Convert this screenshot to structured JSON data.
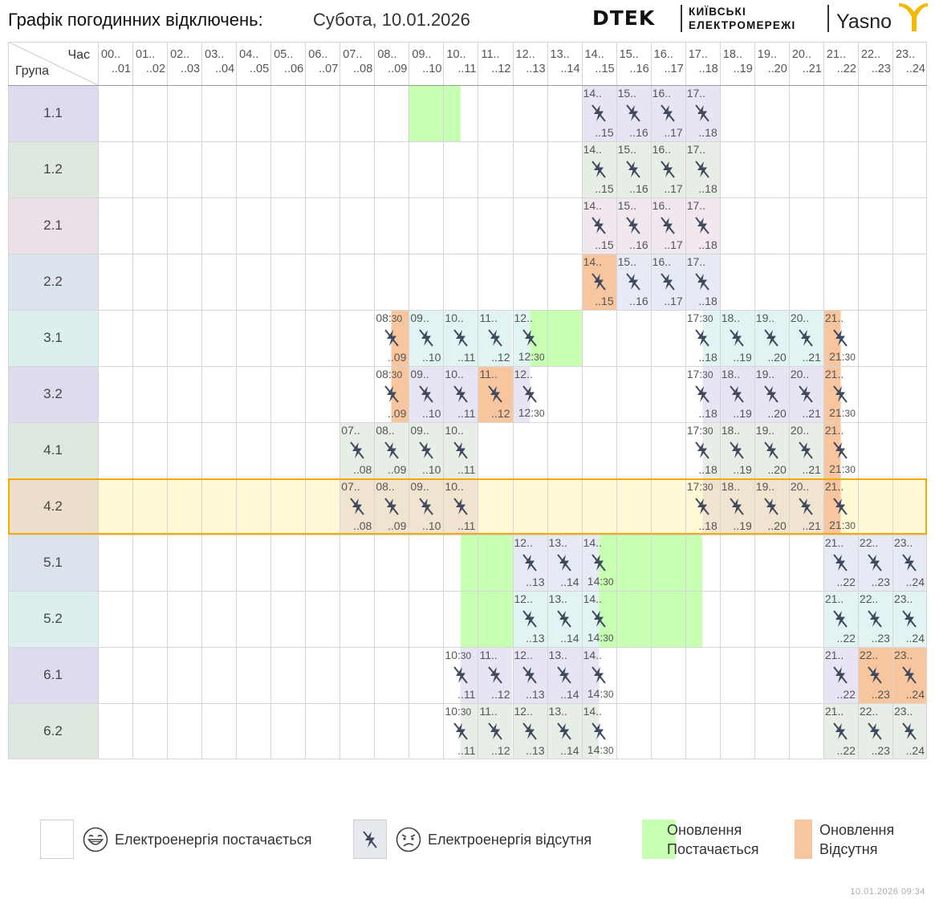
{
  "header": {
    "title": "Графік погодинних відключень:",
    "date": "Субота, 10.01.2026",
    "logo_dtek": "DTEK",
    "logo_kiev_line1": "КИЇВСЬКІ",
    "logo_kiev_line2": "ЕЛЕКТРОМЕРЕЖІ",
    "logo_yasno": "Yasno"
  },
  "grid": {
    "corner_hour": "Час",
    "corner_group": "Група",
    "hour_start_labels": [
      "00..",
      "01..",
      "02..",
      "03..",
      "04..",
      "05..",
      "06..",
      "07..",
      "08..",
      "09..",
      "10..",
      "11..",
      "12..",
      "13..",
      "14..",
      "15..",
      "16..",
      "17..",
      "18..",
      "19..",
      "20..",
      "21..",
      "22..",
      "23.."
    ],
    "hour_end_labels": [
      "..01",
      "..02",
      "..03",
      "..04",
      "..05",
      "..06",
      "..07",
      "..08",
      "..09",
      "..10",
      "..11",
      "..12",
      "..13",
      "..14",
      "..15",
      "..16",
      "..17",
      "..18",
      "..19",
      "..20",
      "..21",
      "..22",
      "..23",
      "..24"
    ],
    "selected_group": "4.2",
    "groups": [
      {
        "name": "1.1",
        "tint": "#dedbee",
        "cell_tint": "#e7e5f4",
        "outages": [
          {
            "h": 14
          },
          {
            "h": 15
          },
          {
            "h": 16
          },
          {
            "h": 17
          }
        ],
        "updates_on": [
          [
            9,
            10.5
          ]
        ],
        "updates_off": []
      },
      {
        "name": "1.2",
        "tint": "#dfe8df",
        "cell_tint": "#e6eee6",
        "outages": [
          {
            "h": 14
          },
          {
            "h": 15
          },
          {
            "h": 16
          },
          {
            "h": 17
          }
        ],
        "updates_on": [],
        "updates_off": []
      },
      {
        "name": "2.1",
        "tint": "#ebdfe8",
        "cell_tint": "#f1e7ee",
        "outages": [
          {
            "h": 14
          },
          {
            "h": 15
          },
          {
            "h": 16
          },
          {
            "h": 17
          }
        ],
        "updates_on": [],
        "updates_off": []
      },
      {
        "name": "2.2",
        "tint": "#dde3ed",
        "cell_tint": "#e5eaf4",
        "outages": [
          {
            "h": 14
          },
          {
            "h": 15
          },
          {
            "h": 16
          },
          {
            "h": 17
          }
        ],
        "updates_on": [],
        "updates_off": [
          [
            14,
            15
          ]
        ]
      },
      {
        "name": "3.1",
        "tint": "#daefee",
        "cell_tint": "#e1f4f3",
        "outages": [
          {
            "h": 8,
            "half": "second"
          },
          {
            "h": 9
          },
          {
            "h": 10
          },
          {
            "h": 11
          },
          {
            "h": 12,
            "half": "first"
          },
          {
            "h": 17,
            "half": "second"
          },
          {
            "h": 18
          },
          {
            "h": 19
          },
          {
            "h": 20
          },
          {
            "h": 21,
            "half": "first"
          }
        ],
        "updates_on": [
          [
            12.5,
            14
          ]
        ],
        "updates_off": [
          [
            8.5,
            9
          ],
          [
            21,
            21.5
          ]
        ]
      },
      {
        "name": "3.2",
        "tint": "#dedbee",
        "cell_tint": "#e7e5f4",
        "outages": [
          {
            "h": 8,
            "half": "second"
          },
          {
            "h": 9
          },
          {
            "h": 10
          },
          {
            "h": 11
          },
          {
            "h": 12,
            "half": "first"
          },
          {
            "h": 17,
            "half": "second"
          },
          {
            "h": 18
          },
          {
            "h": 19
          },
          {
            "h": 20
          },
          {
            "h": 21,
            "half": "first"
          }
        ],
        "updates_on": [],
        "updates_off": [
          [
            8.5,
            9
          ],
          [
            11,
            12.5
          ],
          [
            21,
            21.5
          ]
        ]
      },
      {
        "name": "4.1",
        "tint": "#dfe8df",
        "cell_tint": "#e6eee6",
        "outages": [
          {
            "h": 7
          },
          {
            "h": 8
          },
          {
            "h": 9
          },
          {
            "h": 10
          },
          {
            "h": 17,
            "half": "second"
          },
          {
            "h": 18
          },
          {
            "h": 19
          },
          {
            "h": 20
          },
          {
            "h": 21,
            "half": "first"
          }
        ],
        "updates_on": [],
        "updates_off": [
          [
            21,
            21.5
          ]
        ]
      },
      {
        "name": "4.2",
        "tint": "#ebdfcb",
        "cell_tint": "#f0e4d0",
        "outages": [
          {
            "h": 7
          },
          {
            "h": 8
          },
          {
            "h": 9
          },
          {
            "h": 10
          },
          {
            "h": 17,
            "half": "second"
          },
          {
            "h": 18
          },
          {
            "h": 19
          },
          {
            "h": 20
          },
          {
            "h": 21,
            "half": "first"
          }
        ],
        "updates_on": [],
        "updates_off": [
          [
            21,
            21.5
          ]
        ]
      },
      {
        "name": "5.1",
        "tint": "#dde3ed",
        "cell_tint": "#e5eaf4",
        "outages": [
          {
            "h": 12
          },
          {
            "h": 13
          },
          {
            "h": 14,
            "half": "first"
          },
          {
            "h": 21
          },
          {
            "h": 22
          },
          {
            "h": 23
          }
        ],
        "updates_on": [
          [
            10.5,
            12
          ],
          [
            14.5,
            17.5
          ]
        ],
        "updates_off": []
      },
      {
        "name": "5.2",
        "tint": "#daefee",
        "cell_tint": "#e1f4f3",
        "outages": [
          {
            "h": 12
          },
          {
            "h": 13
          },
          {
            "h": 14,
            "half": "first"
          },
          {
            "h": 21
          },
          {
            "h": 22
          },
          {
            "h": 23
          }
        ],
        "updates_on": [
          [
            10.5,
            12
          ],
          [
            14.5,
            17.5
          ]
        ],
        "updates_off": []
      },
      {
        "name": "6.1",
        "tint": "#dedbee",
        "cell_tint": "#e7e5f4",
        "outages": [
          {
            "h": 10,
            "half": "second"
          },
          {
            "h": 11
          },
          {
            "h": 12
          },
          {
            "h": 13
          },
          {
            "h": 14,
            "half": "first"
          },
          {
            "h": 21
          },
          {
            "h": 22
          },
          {
            "h": 23
          }
        ],
        "updates_on": [],
        "updates_off": [
          [
            22,
            24
          ]
        ]
      },
      {
        "name": "6.2",
        "tint": "#dfe8df",
        "cell_tint": "#e6eee6",
        "outages": [
          {
            "h": 10,
            "half": "second"
          },
          {
            "h": 11
          },
          {
            "h": 12
          },
          {
            "h": 13
          },
          {
            "h": 14,
            "half": "first"
          },
          {
            "h": 21
          },
          {
            "h": 22
          },
          {
            "h": 23
          }
        ],
        "updates_on": [],
        "updates_off": []
      }
    ]
  },
  "colors": {
    "update_on": "#c7ffb3",
    "update_off": "#f7c69e",
    "selected_row_bg": "#fff9d6",
    "selected_outline": "#f0ab00",
    "icon": "#3f4a5e",
    "logo_accent": "#f5b800"
  },
  "legend": {
    "powered": {
      "label": "Електроенергія постачається",
      "icon": "laughing-face-icon"
    },
    "outage": {
      "label": "Електроенергія відсутня",
      "icon": "crossed-lightning-icon",
      "face": "frowning-face-icon"
    },
    "update_on": {
      "line1": "Оновлення",
      "line2": "Постачається"
    },
    "update_off": {
      "line1": "Оновлення",
      "line2": "Відсутня"
    }
  },
  "footer": {
    "timestamp": "10.01.2026   09:34"
  }
}
